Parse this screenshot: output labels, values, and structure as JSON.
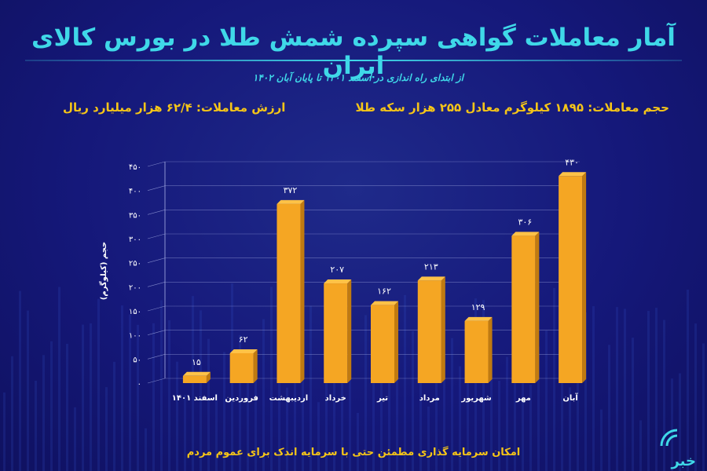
{
  "header": {
    "title": "آمار معاملات گواهی سپرده شمش طلا در بورس کالای ایران",
    "subtitle": "از ابتدای راه اندازی در اسفند ۱۴۰۱ تا پایان آبان ۱۴۰۲"
  },
  "stats": {
    "volume": "حجم معاملات: ۱۸۹۵ کیلوگرم معادل ۲۵۵ هزار سکه طلا",
    "value": "ارزش معاملات: ۶۲/۴ هزار میلیارد ریال"
  },
  "footer": {
    "text": "امکان سرمایه گذاری مطمئن حتی با سرمایه اندک برای عموم مردم"
  },
  "logo": {
    "text": "خبر",
    "icon": "signal-waves-icon"
  },
  "colors": {
    "background": "#15187a",
    "accent_cyan": "#3fd8e8",
    "bar_gold": "#f5a623",
    "text_gold": "#f5c518"
  },
  "chart_data": {
    "type": "bar",
    "categories": [
      "اسفند ۱۴۰۱",
      "فروردین",
      "اردیبهشت",
      "خرداد",
      "تیر",
      "مرداد",
      "شهریور",
      "مهر",
      "آبان"
    ],
    "values": [
      15,
      62,
      372,
      207,
      162,
      213,
      129,
      306,
      430
    ],
    "value_labels": [
      "۱۵",
      "۶۲",
      "۳۷۲",
      "۲۰۷",
      "۱۶۲",
      "۲۱۳",
      "۱۲۹",
      "۳۰۶",
      "۴۳۰"
    ],
    "ylabel": "حجم (کیلوگرم)",
    "ylim": [
      0,
      450
    ],
    "yticks": [
      0,
      50,
      100,
      150,
      200,
      250,
      300,
      350,
      400,
      450
    ],
    "ytick_labels": [
      "۰",
      "۵۰",
      "۱۰۰",
      "۱۵۰",
      "۲۰۰",
      "۲۵۰",
      "۳۰۰",
      "۳۵۰",
      "۴۰۰",
      "۴۵۰"
    ],
    "grid": true,
    "legend": "none"
  }
}
